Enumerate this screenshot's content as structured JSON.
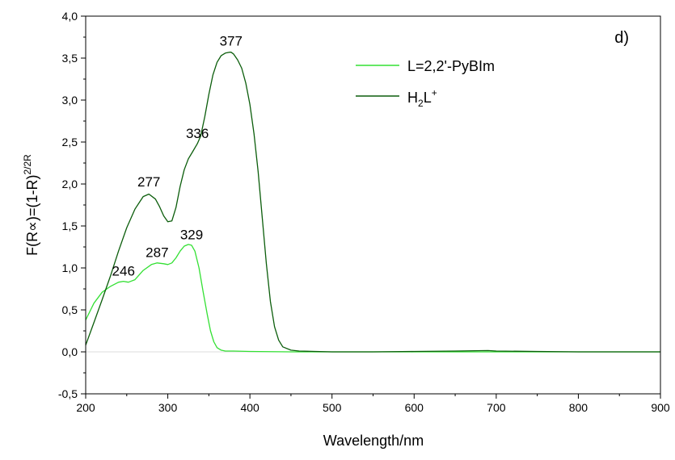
{
  "chart_data": {
    "type": "line",
    "panel_label": "d)",
    "xlabel": "Wavelength/nm",
    "ylabel": "F(R∝)=(1-R)²/2R",
    "ylabel_parts": {
      "base": "F(R",
      "symbol": "∝",
      "mid": ")=(1-R)",
      "sup": "2/2R"
    },
    "xlim": [
      200,
      900
    ],
    "ylim": [
      -0.5,
      4.0
    ],
    "x_ticks": [
      "200",
      "300",
      "400",
      "500",
      "600",
      "700",
      "800",
      "900"
    ],
    "y_ticks": [
      "-0,5",
      "0,0",
      "0,5",
      "1,0",
      "1,5",
      "2,0",
      "2,5",
      "3,0",
      "3,5",
      "4,0"
    ],
    "x_tick_values": [
      200,
      300,
      400,
      500,
      600,
      700,
      800,
      900
    ],
    "y_tick_values": [
      -0.5,
      0.0,
      0.5,
      1.0,
      1.5,
      2.0,
      2.5,
      3.0,
      3.5,
      4.0
    ],
    "legend_position": "top-right",
    "series": [
      {
        "name": "L=2,2'-PyBIm",
        "color": "#33e033",
        "x": [
          200,
          210,
          220,
          230,
          240,
          246,
          252,
          260,
          270,
          280,
          287,
          295,
          300,
          305,
          310,
          315,
          320,
          325,
          329,
          333,
          338,
          343,
          348,
          352,
          356,
          360,
          365,
          370,
          380,
          400,
          450,
          500,
          600,
          700,
          800,
          900
        ],
        "y": [
          0.38,
          0.58,
          0.71,
          0.78,
          0.83,
          0.84,
          0.83,
          0.86,
          0.97,
          1.04,
          1.06,
          1.05,
          1.04,
          1.06,
          1.12,
          1.2,
          1.26,
          1.28,
          1.27,
          1.2,
          1.0,
          0.72,
          0.45,
          0.25,
          0.12,
          0.05,
          0.02,
          0.01,
          0.01,
          0.005,
          0.0,
          0.0,
          0.0,
          0.0,
          0.0,
          0.0
        ]
      },
      {
        "name_parts": {
          "base1": "H",
          "sub": "2",
          "base2": "L",
          "sup": "+"
        },
        "color": "#0b5d0b",
        "x": [
          200,
          210,
          220,
          230,
          240,
          250,
          260,
          270,
          277,
          285,
          290,
          295,
          300,
          305,
          310,
          315,
          320,
          325,
          330,
          336,
          340,
          345,
          350,
          355,
          360,
          365,
          370,
          375,
          377,
          380,
          385,
          390,
          395,
          400,
          405,
          410,
          415,
          420,
          425,
          430,
          435,
          440,
          450,
          460,
          480,
          500,
          550,
          600,
          650,
          690,
          700,
          750,
          800,
          850,
          900
        ],
        "y": [
          0.08,
          0.35,
          0.62,
          0.9,
          1.2,
          1.48,
          1.7,
          1.85,
          1.88,
          1.82,
          1.73,
          1.62,
          1.55,
          1.56,
          1.72,
          1.97,
          2.17,
          2.3,
          2.38,
          2.48,
          2.57,
          2.8,
          3.07,
          3.3,
          3.45,
          3.53,
          3.56,
          3.57,
          3.57,
          3.55,
          3.48,
          3.38,
          3.2,
          2.95,
          2.6,
          2.15,
          1.6,
          1.05,
          0.6,
          0.3,
          0.14,
          0.06,
          0.02,
          0.01,
          0.005,
          0.0,
          0.0,
          0.005,
          0.01,
          0.015,
          0.01,
          0.005,
          0.0,
          0.0,
          0.0
        ]
      }
    ],
    "annotations": [
      {
        "text": "377",
        "x": 377,
        "y": 3.65
      },
      {
        "text": "336",
        "x": 336,
        "y": 2.55
      },
      {
        "text": "277",
        "x": 277,
        "y": 1.97
      },
      {
        "text": "287",
        "x": 287,
        "y": 1.13
      },
      {
        "text": "329",
        "x": 329,
        "y": 1.34
      },
      {
        "text": "246",
        "x": 246,
        "y": 0.91
      }
    ]
  }
}
